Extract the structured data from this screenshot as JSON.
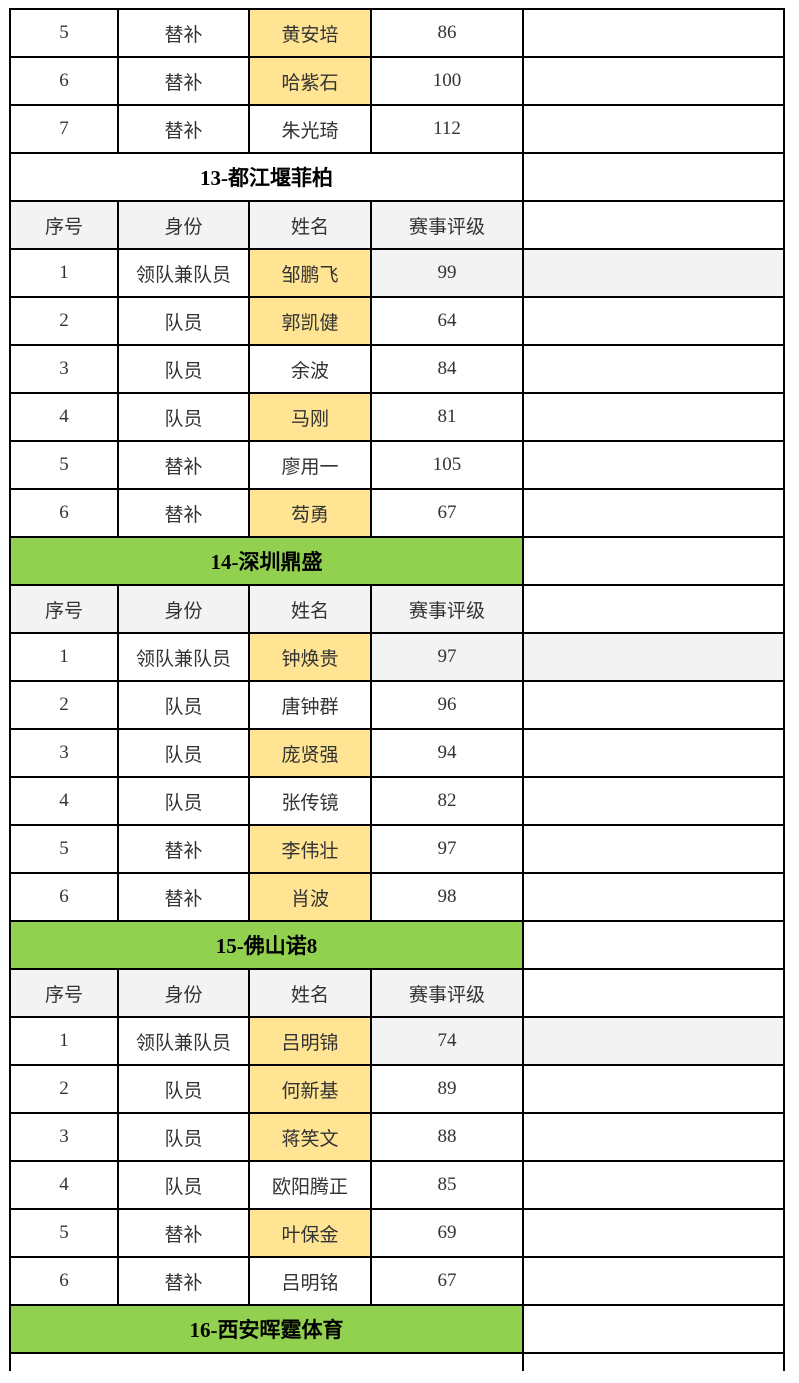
{
  "colors": {
    "border": "#000000",
    "text": "#333333",
    "header_gray": "#f3f3f3",
    "highlight_yellow": "#ffe494",
    "team_green": "#92d050",
    "cell_white": "#ffffff"
  },
  "table": {
    "column_headers": [
      "序号",
      "身份",
      "姓名",
      "赛事评级",
      ""
    ],
    "sections": [
      {
        "kind": "data_rows",
        "rows": [
          {
            "no": "5",
            "role": "替补",
            "name": "黄安培",
            "name_highlight": true,
            "rating": "86",
            "leader_shade": false
          },
          {
            "no": "6",
            "role": "替补",
            "name": "哈紫石",
            "name_highlight": true,
            "rating": "100",
            "leader_shade": false
          },
          {
            "no": "7",
            "role": "替补",
            "name": "朱光琦",
            "name_highlight": false,
            "rating": "112",
            "leader_shade": false
          }
        ]
      },
      {
        "kind": "team_header",
        "label": "13-都江堰菲柏",
        "fill": "white"
      },
      {
        "kind": "column_header"
      },
      {
        "kind": "data_rows",
        "rows": [
          {
            "no": "1",
            "role": "领队兼队员",
            "name": "邹鹏飞",
            "name_highlight": true,
            "rating": "99",
            "leader_shade": true
          },
          {
            "no": "2",
            "role": "队员",
            "name": "郭凯健",
            "name_highlight": true,
            "rating": "64",
            "leader_shade": false
          },
          {
            "no": "3",
            "role": "队员",
            "name": "余波",
            "name_highlight": false,
            "rating": "84",
            "leader_shade": false
          },
          {
            "no": "4",
            "role": "队员",
            "name": "马刚",
            "name_highlight": true,
            "rating": "81",
            "leader_shade": false
          },
          {
            "no": "5",
            "role": "替补",
            "name": "廖用一",
            "name_highlight": false,
            "rating": "105",
            "leader_shade": false
          },
          {
            "no": "6",
            "role": "替补",
            "name": "芶勇",
            "name_highlight": true,
            "rating": "67",
            "leader_shade": false
          }
        ]
      },
      {
        "kind": "team_header",
        "label": "14-深圳鼎盛",
        "fill": "green"
      },
      {
        "kind": "column_header"
      },
      {
        "kind": "data_rows",
        "rows": [
          {
            "no": "1",
            "role": "领队兼队员",
            "name": "钟焕贵",
            "name_highlight": true,
            "rating": "97",
            "leader_shade": true
          },
          {
            "no": "2",
            "role": "队员",
            "name": "唐钟群",
            "name_highlight": false,
            "rating": "96",
            "leader_shade": false
          },
          {
            "no": "3",
            "role": "队员",
            "name": "庞贤强",
            "name_highlight": true,
            "rating": "94",
            "leader_shade": false
          },
          {
            "no": "4",
            "role": "队员",
            "name": "张传镜",
            "name_highlight": false,
            "rating": "82",
            "leader_shade": false
          },
          {
            "no": "5",
            "role": "替补",
            "name": "李伟壮",
            "name_highlight": true,
            "rating": "97",
            "leader_shade": false
          },
          {
            "no": "6",
            "role": "替补",
            "name": "肖波",
            "name_highlight": true,
            "rating": "98",
            "leader_shade": false
          }
        ]
      },
      {
        "kind": "team_header",
        "label": "15-佛山诺8",
        "fill": "green"
      },
      {
        "kind": "column_header"
      },
      {
        "kind": "data_rows",
        "rows": [
          {
            "no": "1",
            "role": "领队兼队员",
            "name": "吕明锦",
            "name_highlight": true,
            "rating": "74",
            "leader_shade": true
          },
          {
            "no": "2",
            "role": "队员",
            "name": "何新基",
            "name_highlight": true,
            "rating": "89",
            "leader_shade": false
          },
          {
            "no": "3",
            "role": "队员",
            "name": "蒋笑文",
            "name_highlight": true,
            "rating": "88",
            "leader_shade": false
          },
          {
            "no": "4",
            "role": "队员",
            "name": "欧阳腾正",
            "name_highlight": false,
            "rating": "85",
            "leader_shade": false
          },
          {
            "no": "5",
            "role": "替补",
            "name": "叶保金",
            "name_highlight": true,
            "rating": "69",
            "leader_shade": false
          },
          {
            "no": "6",
            "role": "替补",
            "name": "吕明铭",
            "name_highlight": false,
            "rating": "67",
            "leader_shade": false
          }
        ]
      },
      {
        "kind": "team_header",
        "label": "16-西安晖霆体育",
        "fill": "green"
      },
      {
        "kind": "partial_row"
      }
    ]
  }
}
